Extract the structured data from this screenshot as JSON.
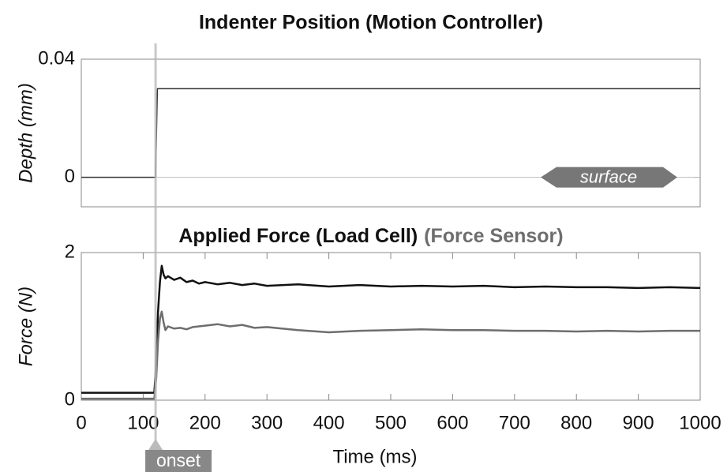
{
  "chart_data": [
    {
      "type": "line",
      "title": "Indenter Position (Motion Controller)",
      "y_label": "Depth (mm)",
      "x": [
        0,
        120,
        123,
        1000
      ],
      "series": [
        {
          "color": "#333333",
          "values": [
            0,
            0,
            0.03,
            0.03
          ]
        }
      ],
      "xlim": [
        0,
        1000
      ],
      "ylim": [
        -0.01,
        0.04
      ],
      "yticks": [
        0,
        0.04
      ],
      "annotations": [
        {
          "text": "surface",
          "y": 0
        }
      ]
    },
    {
      "type": "line",
      "x_label": "Time (ms)",
      "y_label": "Force (N)",
      "x": [
        0,
        60,
        118,
        121,
        124,
        127,
        130,
        133,
        136,
        140,
        150,
        160,
        170,
        180,
        190,
        200,
        220,
        240,
        260,
        280,
        300,
        350,
        400,
        450,
        500,
        550,
        600,
        650,
        700,
        750,
        800,
        850,
        900,
        950,
        1000
      ],
      "series": [
        {
          "name": "Applied Force (Load Cell)",
          "color": "#111111",
          "values": [
            0.1,
            0.1,
            0.1,
            0.5,
            1.2,
            1.6,
            1.82,
            1.7,
            1.65,
            1.68,
            1.63,
            1.66,
            1.6,
            1.62,
            1.58,
            1.6,
            1.57,
            1.59,
            1.56,
            1.58,
            1.55,
            1.57,
            1.54,
            1.56,
            1.54,
            1.55,
            1.54,
            1.55,
            1.53,
            1.54,
            1.53,
            1.53,
            1.52,
            1.53,
            1.52
          ]
        },
        {
          "name": "(Force Sensor)",
          "color": "#6e6e6e",
          "values": [
            0.02,
            0.02,
            0.02,
            0.3,
            0.8,
            1.1,
            1.2,
            1.05,
            0.95,
            1.0,
            0.97,
            0.98,
            0.96,
            0.99,
            1.0,
            1.01,
            1.03,
            1.0,
            1.02,
            0.98,
            0.99,
            0.95,
            0.92,
            0.94,
            0.95,
            0.96,
            0.95,
            0.95,
            0.94,
            0.94,
            0.93,
            0.94,
            0.93,
            0.94,
            0.94
          ]
        }
      ],
      "xlim": [
        0,
        1000
      ],
      "xticks": [
        0,
        100,
        200,
        300,
        400,
        500,
        600,
        700,
        800,
        900,
        1000
      ],
      "ylim": [
        0,
        2
      ],
      "yticks": [
        0,
        2
      ],
      "annotations": [
        {
          "text": "onset",
          "x": 120
        }
      ]
    }
  ]
}
